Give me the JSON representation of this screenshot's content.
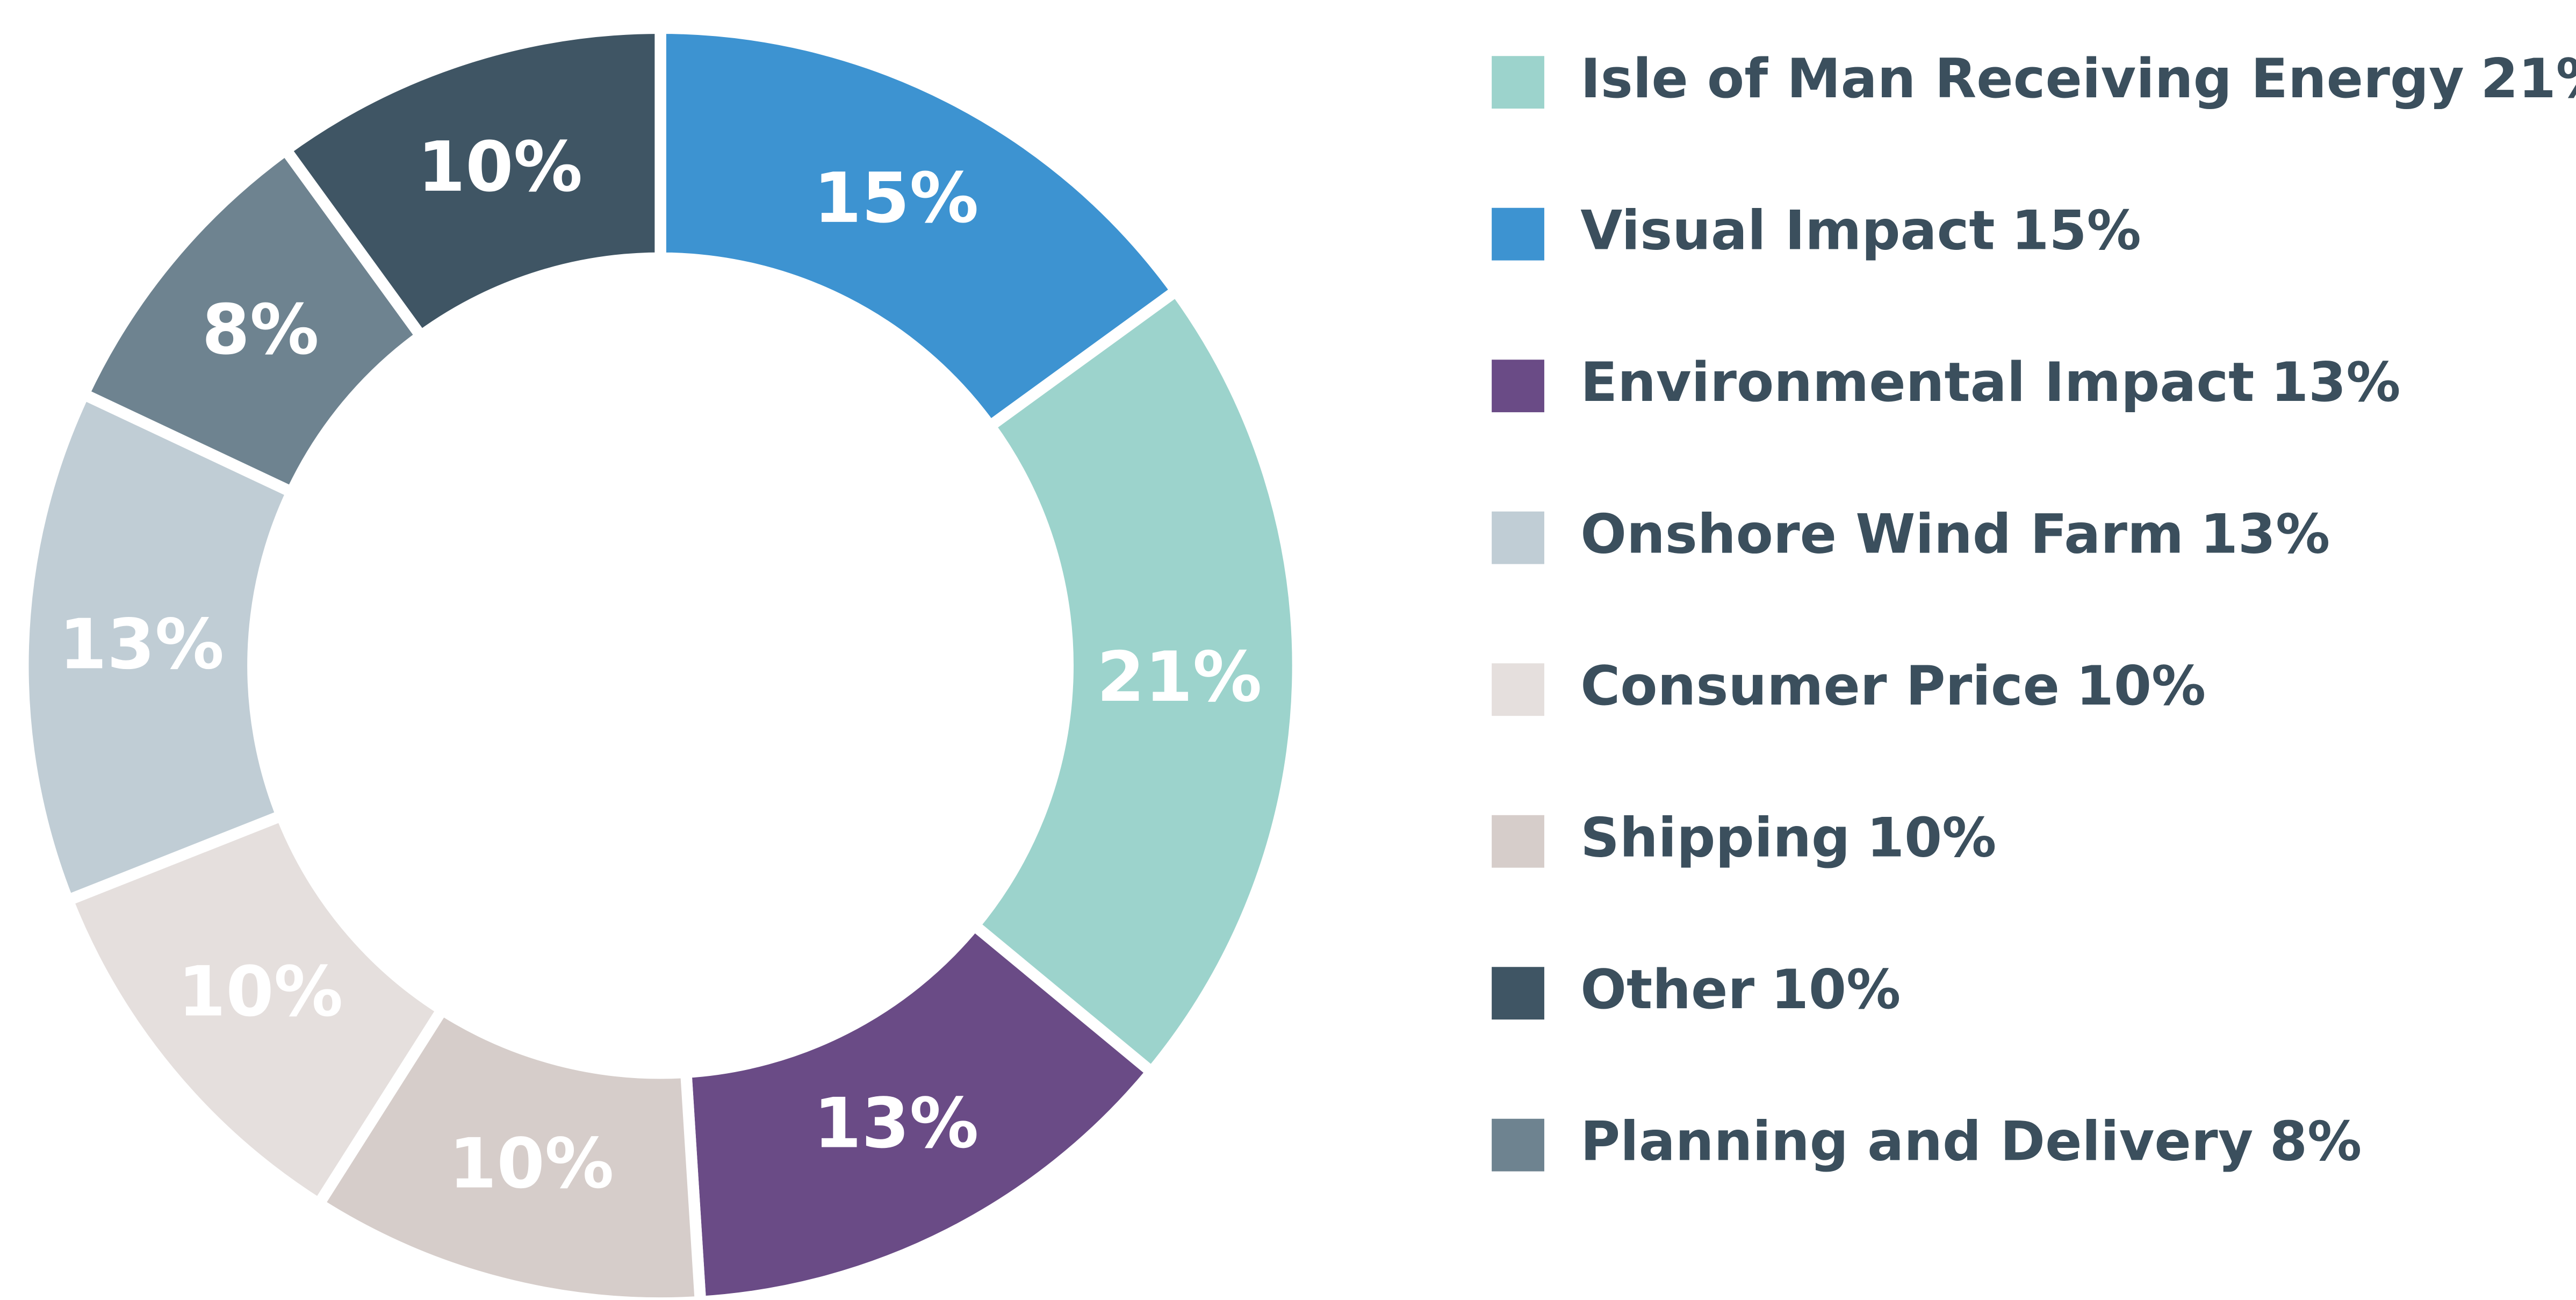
{
  "chart_data": {
    "type": "donut",
    "categories": [
      "Visual Impact",
      "Isle of Man Receiving Energy",
      "Environmental Impact",
      "Shipping",
      "Consumer Price",
      "Onshore Wind Farm",
      "Planning and Delivery",
      "Other"
    ],
    "values": [
      15,
      21,
      13,
      10,
      10,
      13,
      8,
      10
    ],
    "value_labels": [
      "15%",
      "21%",
      "13%",
      "10%",
      "10%",
      "13%",
      "8%",
      "10%"
    ],
    "colors": [
      "#3d93d1",
      "#9cd3cc",
      "#6a4b86",
      "#d6cdca",
      "#e5dfdd",
      "#c0cdd5",
      "#6e8390",
      "#3f5564"
    ]
  }
}
